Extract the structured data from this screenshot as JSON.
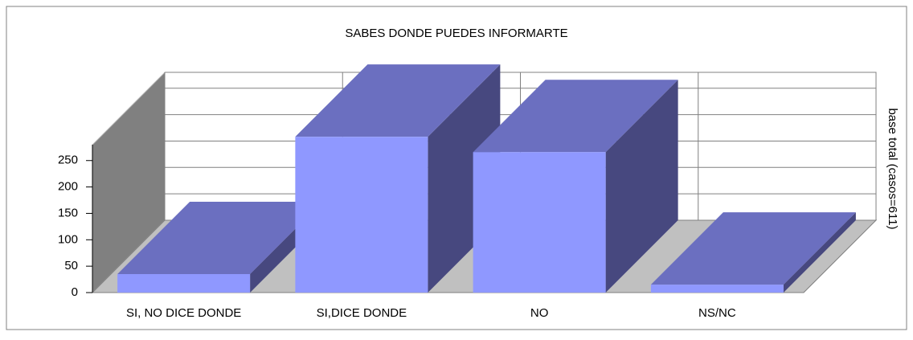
{
  "chart_data": {
    "type": "bar3d",
    "title": "SABES DONDE PUEDES INFORMARTE",
    "y2_label": "base total (casos=611)",
    "categories": [
      "SI, NO DICE DONDE",
      "SI,DICE DONDE",
      "NO",
      "NS/NC"
    ],
    "values": [
      35,
      295,
      266,
      15
    ],
    "color": "#8f98ff",
    "top_color": "#6b6fc0",
    "side_color": "#47487f",
    "ylim": [
      0,
      280
    ],
    "yticks": [
      0,
      50,
      100,
      150,
      200,
      250
    ],
    "grid": true
  }
}
